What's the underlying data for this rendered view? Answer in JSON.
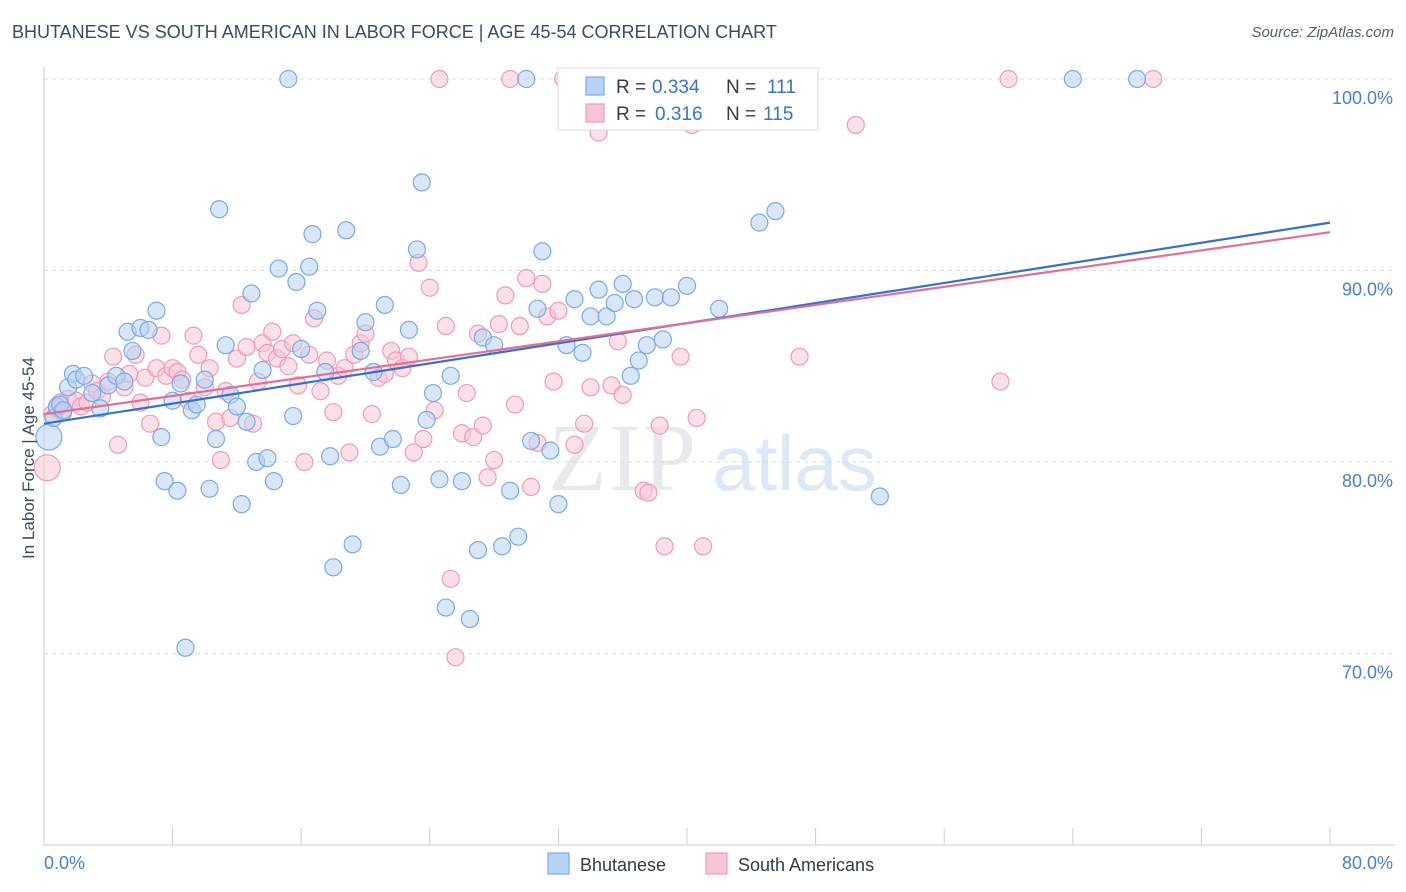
{
  "header": {
    "title": "BHUTANESE VS SOUTH AMERICAN IN LABOR FORCE | AGE 45-54 CORRELATION CHART",
    "source": "Source: ZipAtlas.com"
  },
  "watermark": {
    "zip": "ZIP",
    "atlas": "atlas"
  },
  "chart_data": {
    "type": "scatter",
    "ylabel": "In Labor Force | Age 45-54",
    "xlim": [
      0,
      80
    ],
    "ylim": [
      60,
      102
    ],
    "x_tick_labels": [
      "0.0%",
      "80.0%"
    ],
    "y_ticks": [
      {
        "value": 100,
        "label": "100.0%"
      },
      {
        "value": 90,
        "label": "90.0%"
      },
      {
        "value": 80,
        "label": "80.0%"
      },
      {
        "value": 70,
        "label": "70.0%"
      }
    ],
    "legend": [
      {
        "r_label": "R =",
        "r_value": "0.334",
        "n_label": "N =",
        "n_value": "111"
      },
      {
        "r_label": "R =",
        "r_value": "0.316",
        "n_label": "N =",
        "n_value": "115"
      }
    ],
    "series": [
      {
        "name": "Bhutanese",
        "color": "#7aaae8",
        "fill": "#b8d2f3",
        "line_color": "#3671c9",
        "trend": {
          "x0": 0,
          "y0": 82.0,
          "x1": 80,
          "y1": 92.5
        },
        "points": [
          [
            0.3,
            81.3
          ],
          [
            0.6,
            82.3
          ],
          [
            0.8,
            82.9
          ],
          [
            1.0,
            83.0
          ],
          [
            1.2,
            82.7
          ],
          [
            1.5,
            83.9
          ],
          [
            1.8,
            84.6
          ],
          [
            2.0,
            84.3
          ],
          [
            2.5,
            84.5
          ],
          [
            3.0,
            83.6
          ],
          [
            3.5,
            82.8
          ],
          [
            4.0,
            84.0
          ],
          [
            4.5,
            84.5
          ],
          [
            5.0,
            84.2
          ],
          [
            5.2,
            86.8
          ],
          [
            5.5,
            85.8
          ],
          [
            6.0,
            87.0
          ],
          [
            6.5,
            86.9
          ],
          [
            7.0,
            87.9
          ],
          [
            7.3,
            81.3
          ],
          [
            7.5,
            79.0
          ],
          [
            8.0,
            83.2
          ],
          [
            8.3,
            78.5
          ],
          [
            8.5,
            84.1
          ],
          [
            8.8,
            70.3
          ],
          [
            9.2,
            82.7
          ],
          [
            9.5,
            83.0
          ],
          [
            10.0,
            84.3
          ],
          [
            10.3,
            78.6
          ],
          [
            10.7,
            81.2
          ],
          [
            10.9,
            93.2
          ],
          [
            11.3,
            86.1
          ],
          [
            11.6,
            83.5
          ],
          [
            12.0,
            82.9
          ],
          [
            12.3,
            77.8
          ],
          [
            12.6,
            82.1
          ],
          [
            12.9,
            88.8
          ],
          [
            13.2,
            80.0
          ],
          [
            13.6,
            84.8
          ],
          [
            13.9,
            80.2
          ],
          [
            14.3,
            79.0
          ],
          [
            14.6,
            90.1
          ],
          [
            15.2,
            100.0
          ],
          [
            15.5,
            82.4
          ],
          [
            15.7,
            89.4
          ],
          [
            16.0,
            85.9
          ],
          [
            16.5,
            90.2
          ],
          [
            16.7,
            91.9
          ],
          [
            17.0,
            87.9
          ],
          [
            17.5,
            84.7
          ],
          [
            17.8,
            80.3
          ],
          [
            18.0,
            74.5
          ],
          [
            18.8,
            92.1
          ],
          [
            19.2,
            75.7
          ],
          [
            19.7,
            85.8
          ],
          [
            20.0,
            87.3
          ],
          [
            20.5,
            84.7
          ],
          [
            20.9,
            80.8
          ],
          [
            21.2,
            88.2
          ],
          [
            21.7,
            81.2
          ],
          [
            22.2,
            78.8
          ],
          [
            22.7,
            86.9
          ],
          [
            23.2,
            91.1
          ],
          [
            23.5,
            94.6
          ],
          [
            23.8,
            82.2
          ],
          [
            24.2,
            83.6
          ],
          [
            24.6,
            79.1
          ],
          [
            25.0,
            72.4
          ],
          [
            25.3,
            84.5
          ],
          [
            26.0,
            79.0
          ],
          [
            26.5,
            71.8
          ],
          [
            27.0,
            75.4
          ],
          [
            27.3,
            86.5
          ],
          [
            28.0,
            86.1
          ],
          [
            28.5,
            75.6
          ],
          [
            29.0,
            78.5
          ],
          [
            29.5,
            76.1
          ],
          [
            30.0,
            100.0
          ],
          [
            30.3,
            81.1
          ],
          [
            30.7,
            88.0
          ],
          [
            31.0,
            91.0
          ],
          [
            31.5,
            80.6
          ],
          [
            32.0,
            77.8
          ],
          [
            32.5,
            86.1
          ],
          [
            33.0,
            88.5
          ],
          [
            33.5,
            85.7
          ],
          [
            34.0,
            87.6
          ],
          [
            34.5,
            89.0
          ],
          [
            35.0,
            87.6
          ],
          [
            35.5,
            88.3
          ],
          [
            36.0,
            89.3
          ],
          [
            36.5,
            84.5
          ],
          [
            36.7,
            88.5
          ],
          [
            37.0,
            85.3
          ],
          [
            37.5,
            86.1
          ],
          [
            38.0,
            88.6
          ],
          [
            38.5,
            86.4
          ],
          [
            39.0,
            88.6
          ],
          [
            40.0,
            89.2
          ],
          [
            42.0,
            88.0
          ],
          [
            44.5,
            92.5
          ],
          [
            45.5,
            93.1
          ],
          [
            52.0,
            78.2
          ],
          [
            64.0,
            100.0
          ],
          [
            68.0,
            100.0
          ]
        ]
      },
      {
        "name": "South Americans",
        "color": "#ee9bb7",
        "fill": "#f7c6d6",
        "line_color": "#e0709a",
        "trend": {
          "x0": 0,
          "y0": 82.5,
          "x1": 80,
          "y1": 92.0
        },
        "points": [
          [
            0.2,
            79.7
          ],
          [
            0.5,
            82.5
          ],
          [
            0.8,
            82.8
          ],
          [
            1.0,
            83.1
          ],
          [
            1.2,
            82.6
          ],
          [
            1.5,
            83.3
          ],
          [
            2.0,
            83.2
          ],
          [
            2.3,
            82.9
          ],
          [
            2.7,
            83.1
          ],
          [
            3.0,
            84.1
          ],
          [
            3.3,
            83.7
          ],
          [
            3.6,
            83.4
          ],
          [
            4.0,
            84.2
          ],
          [
            4.3,
            85.5
          ],
          [
            4.6,
            80.9
          ],
          [
            5.0,
            83.9
          ],
          [
            5.3,
            84.6
          ],
          [
            5.7,
            85.6
          ],
          [
            6.0,
            83.1
          ],
          [
            6.3,
            84.4
          ],
          [
            6.6,
            82.0
          ],
          [
            7.0,
            84.9
          ],
          [
            7.3,
            86.6
          ],
          [
            7.6,
            84.5
          ],
          [
            8.0,
            84.9
          ],
          [
            8.3,
            84.7
          ],
          [
            8.6,
            84.3
          ],
          [
            9.0,
            83.2
          ],
          [
            9.3,
            86.6
          ],
          [
            9.6,
            85.6
          ],
          [
            10.0,
            83.9
          ],
          [
            10.3,
            84.9
          ],
          [
            10.7,
            82.1
          ],
          [
            11.0,
            80.1
          ],
          [
            11.3,
            83.7
          ],
          [
            11.6,
            82.3
          ],
          [
            12.0,
            85.4
          ],
          [
            12.3,
            88.2
          ],
          [
            12.6,
            86.0
          ],
          [
            13.0,
            82.0
          ],
          [
            13.3,
            84.2
          ],
          [
            13.6,
            86.2
          ],
          [
            13.9,
            85.7
          ],
          [
            14.2,
            86.8
          ],
          [
            14.5,
            85.4
          ],
          [
            14.8,
            85.9
          ],
          [
            15.2,
            85.0
          ],
          [
            15.5,
            86.2
          ],
          [
            15.8,
            84.0
          ],
          [
            16.2,
            80.0
          ],
          [
            16.5,
            85.6
          ],
          [
            16.8,
            87.5
          ],
          [
            17.2,
            83.7
          ],
          [
            17.6,
            85.3
          ],
          [
            18.0,
            82.6
          ],
          [
            18.3,
            84.5
          ],
          [
            18.7,
            84.9
          ],
          [
            19.0,
            80.5
          ],
          [
            19.3,
            85.6
          ],
          [
            19.7,
            86.2
          ],
          [
            20.0,
            86.7
          ],
          [
            20.4,
            82.5
          ],
          [
            20.8,
            84.4
          ],
          [
            21.2,
            84.6
          ],
          [
            21.6,
            85.8
          ],
          [
            21.9,
            85.3
          ],
          [
            22.3,
            84.9
          ],
          [
            22.7,
            85.5
          ],
          [
            23.0,
            80.5
          ],
          [
            23.3,
            90.4
          ],
          [
            23.6,
            81.2
          ],
          [
            24.0,
            89.1
          ],
          [
            24.3,
            82.7
          ],
          [
            24.6,
            100.0
          ],
          [
            25.0,
            87.1
          ],
          [
            25.3,
            73.9
          ],
          [
            25.6,
            69.8
          ],
          [
            26.0,
            81.5
          ],
          [
            26.3,
            83.6
          ],
          [
            26.7,
            81.3
          ],
          [
            27.0,
            86.7
          ],
          [
            27.3,
            81.9
          ],
          [
            27.6,
            79.2
          ],
          [
            28.0,
            80.1
          ],
          [
            28.3,
            87.2
          ],
          [
            28.7,
            88.7
          ],
          [
            29.0,
            100.0
          ],
          [
            29.3,
            83.0
          ],
          [
            29.6,
            87.1
          ],
          [
            30.0,
            89.6
          ],
          [
            30.3,
            78.7
          ],
          [
            30.7,
            81.0
          ],
          [
            31.0,
            89.3
          ],
          [
            31.3,
            87.6
          ],
          [
            31.7,
            84.2
          ],
          [
            32.0,
            87.9
          ],
          [
            32.3,
            100.0
          ],
          [
            33.0,
            80.9
          ],
          [
            33.6,
            82.0
          ],
          [
            34.0,
            83.9
          ],
          [
            34.5,
            97.2
          ],
          [
            35.3,
            84.0
          ],
          [
            35.7,
            86.3
          ],
          [
            36.0,
            83.5
          ],
          [
            37.3,
            78.5
          ],
          [
            37.6,
            78.4
          ],
          [
            38.3,
            81.9
          ],
          [
            38.6,
            75.6
          ],
          [
            39.6,
            85.5
          ],
          [
            40.3,
            97.6
          ],
          [
            40.6,
            82.3
          ],
          [
            41.0,
            75.6
          ],
          [
            47.0,
            85.5
          ],
          [
            50.5,
            97.6
          ],
          [
            59.5,
            84.2
          ],
          [
            60.0,
            100.0
          ],
          [
            69.0,
            100.0
          ]
        ]
      }
    ]
  }
}
